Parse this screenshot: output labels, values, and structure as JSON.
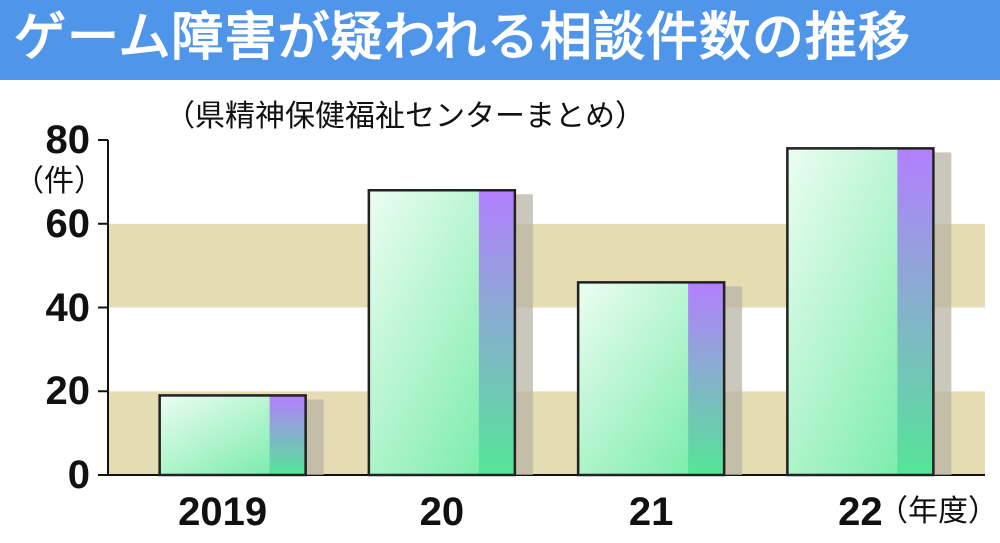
{
  "title": "ゲーム障害が疑われる相談件数の推移",
  "source_note": "（県精神保健福祉センターまとめ）",
  "colors": {
    "title_bg": "#4f95ea",
    "band": "#e6dcb4",
    "bar_light": "#e9fdf0",
    "bar_dark": "#5ee89a",
    "bar_accent_top": "#b083ff",
    "shadow": "#b8b4a6"
  },
  "chart_data": {
    "type": "bar",
    "title": "ゲーム障害が疑われる相談件数の推移",
    "subtitle": "（県精神保健福祉センターまとめ）",
    "ylabel": "（件）",
    "xlabel": "（年度）",
    "categories": [
      "2019",
      "20",
      "21",
      "22"
    ],
    "values": [
      19,
      68,
      46,
      78
    ],
    "ylim": [
      0,
      80
    ],
    "yticks": [
      "0",
      "20",
      "40",
      "60",
      "80"
    ],
    "grid": "alternating horizontal bands",
    "legend": "none"
  }
}
